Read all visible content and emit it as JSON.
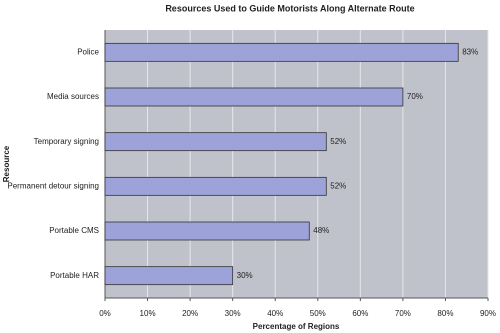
{
  "chart_data": {
    "type": "hbar",
    "title": "Resources Used to Guide Motorists Along Alternate Route",
    "x_label": "Percentage of Regions",
    "y_label": "Resource",
    "categories": [
      "Police",
      "Media sources",
      "Temporary signing",
      "Permanent detour signing",
      "Portable CMS",
      "Portable HAR"
    ],
    "values": [
      83,
      70,
      52,
      52,
      48,
      30
    ],
    "value_labels": [
      "83%",
      "70%",
      "52%",
      "52%",
      "48%",
      "30%"
    ],
    "color": "#9da3d9",
    "xlim": [
      0,
      90
    ],
    "xticks": [
      {
        "value": 0,
        "label": "0%"
      },
      {
        "value": 10,
        "label": "10%"
      },
      {
        "value": 20,
        "label": "20%"
      },
      {
        "value": 30,
        "label": "30%"
      },
      {
        "value": 40,
        "label": "40%"
      },
      {
        "value": 50,
        "label": "50%"
      },
      {
        "value": 60,
        "label": "60%"
      },
      {
        "value": 70,
        "label": "70%"
      },
      {
        "value": 80,
        "label": "80%"
      },
      {
        "value": 90,
        "label": "90%"
      }
    ],
    "grid": true
  }
}
